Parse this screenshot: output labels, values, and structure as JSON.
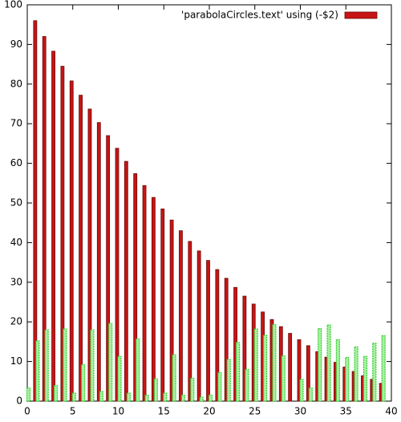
{
  "chart_data": {
    "type": "bar",
    "x": [
      0,
      1,
      2,
      3,
      4,
      5,
      6,
      7,
      8,
      9,
      10,
      11,
      12,
      13,
      14,
      15,
      16,
      17,
      18,
      19,
      20,
      21,
      22,
      23,
      24,
      25,
      26,
      27,
      28,
      29,
      30,
      31,
      32,
      33,
      34,
      35,
      36,
      37,
      38,
      39
    ],
    "series": [
      {
        "name": "'parabolaCircles.text' using (-$2)",
        "color": "#c81414",
        "values": [
          null,
          96,
          92,
          88.3,
          84.5,
          80.8,
          77.2,
          73.7,
          70.3,
          67,
          63.8,
          60.5,
          57.4,
          54.4,
          51.4,
          48.5,
          45.7,
          43,
          40.3,
          37.9,
          35.5,
          33.2,
          31,
          28.7,
          26.5,
          24.5,
          22.5,
          20.6,
          18.8,
          17.1,
          15.5,
          14,
          12.5,
          11.1,
          9.8,
          8.6,
          7.5,
          6.4,
          5.5,
          4.5
        ]
      },
      {
        "color": "#33cc33",
        "values": [
          3.3,
          15.2,
          18,
          3.9,
          18.2,
          2,
          9.2,
          18,
          2.4,
          19.6,
          11.3,
          2,
          15.7,
          1.5,
          5.6,
          2,
          11.7,
          1.5,
          5.8,
          1,
          1.5,
          7.2,
          10.5,
          14.8,
          8,
          18.2,
          16.6,
          19.3,
          11.4,
          0,
          5.5,
          3.3,
          18.3,
          19.2,
          15.5,
          11,
          13.7,
          11.3,
          14.6,
          16.5
        ]
      }
    ],
    "xlim": [
      0,
      40
    ],
    "xticks": [
      0,
      5,
      10,
      15,
      20,
      25,
      30,
      35,
      40
    ],
    "ylim": [
      0,
      100
    ],
    "yticks": [
      0,
      10,
      20,
      30,
      40,
      50,
      60,
      70,
      80,
      90,
      100
    ],
    "legend": "top-right"
  }
}
